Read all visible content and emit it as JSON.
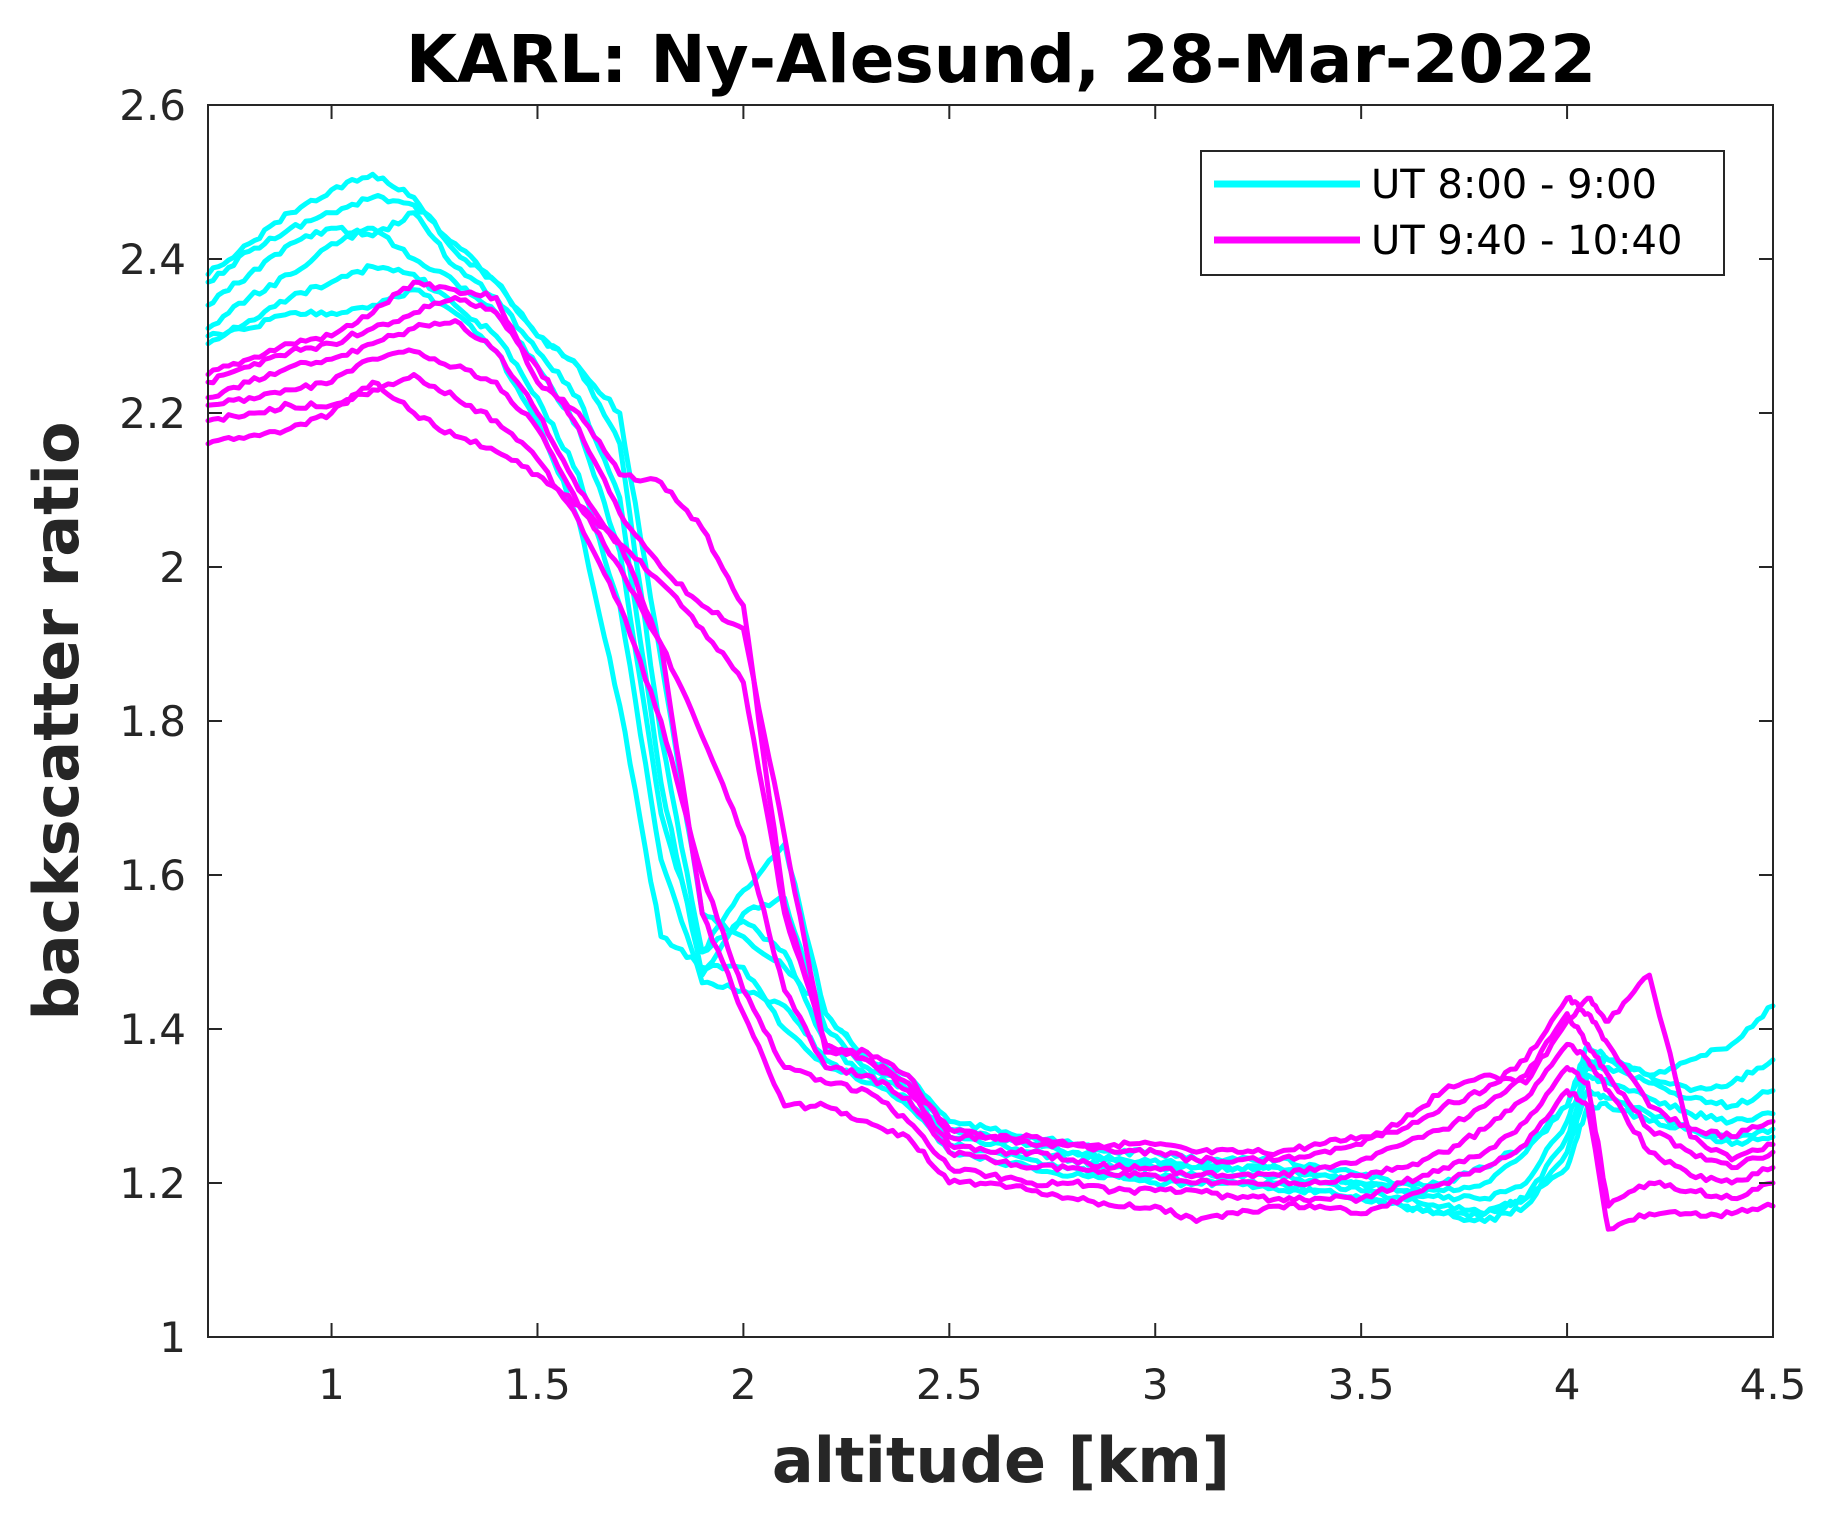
{
  "chart_data": {
    "type": "line",
    "title": "KARL: Ny-Alesund, 28-Mar-2022",
    "xlabel": "altitude [km]",
    "ylabel": "backscatter ratio",
    "xlim": [
      0.7,
      4.5
    ],
    "ylim": [
      1.0,
      2.6
    ],
    "x_ticks": [
      1,
      1.5,
      2,
      2.5,
      3,
      3.5,
      4,
      4.5
    ],
    "x_tick_labels": [
      "1",
      "1.5",
      "2",
      "2.5",
      "3",
      "3.5",
      "4",
      "4.5"
    ],
    "y_ticks": [
      1,
      1.2,
      1.4,
      1.6,
      1.8,
      2,
      2.2,
      2.4,
      2.6
    ],
    "y_tick_labels": [
      "1",
      "1.2",
      "1.4",
      "1.6",
      "1.8",
      "2",
      "2.2",
      "2.4",
      "2.6"
    ],
    "grid": false,
    "legend": {
      "placement": "top-right",
      "entries": [
        {
          "label": "UT 8:00 - 9:00",
          "color": "#00ffff"
        },
        {
          "label": "UT 9:40 - 10:40",
          "color": "#ff00ff"
        }
      ]
    },
    "x": [
      0.7,
      0.8,
      0.9,
      1.0,
      1.1,
      1.2,
      1.3,
      1.4,
      1.5,
      1.6,
      1.7,
      1.8,
      1.9,
      2.0,
      2.1,
      2.2,
      2.3,
      2.4,
      2.5,
      2.6,
      2.7,
      2.8,
      2.9,
      3.0,
      3.1,
      3.2,
      3.3,
      3.4,
      3.5,
      3.6,
      3.7,
      3.8,
      3.9,
      4.0,
      4.05,
      4.1,
      4.2,
      4.3,
      4.4,
      4.5
    ],
    "series": [
      {
        "group": 0,
        "color": "#00ffff",
        "values": [
          2.38,
          2.42,
          2.46,
          2.49,
          2.51,
          2.48,
          2.41,
          2.37,
          2.3,
          2.26,
          2.2,
          1.88,
          1.55,
          1.52,
          1.48,
          1.42,
          1.36,
          1.34,
          1.28,
          1.27,
          1.26,
          1.25,
          1.24,
          1.24,
          1.23,
          1.23,
          1.23,
          1.22,
          1.21,
          1.2,
          1.2,
          1.22,
          1.25,
          1.3,
          1.38,
          1.36,
          1.34,
          1.36,
          1.38,
          1.43
        ]
      },
      {
        "group": 0,
        "color": "#00ffff",
        "values": [
          2.37,
          2.41,
          2.44,
          2.46,
          2.48,
          2.47,
          2.42,
          2.37,
          2.3,
          2.26,
          2.16,
          1.78,
          1.5,
          1.58,
          1.64,
          1.42,
          1.36,
          1.33,
          1.27,
          1.26,
          1.25,
          1.24,
          1.23,
          1.23,
          1.22,
          1.22,
          1.22,
          1.21,
          1.2,
          1.19,
          1.19,
          1.2,
          1.24,
          1.3,
          1.36,
          1.36,
          1.34,
          1.32,
          1.33,
          1.36
        ]
      },
      {
        "group": 0,
        "color": "#00ffff",
        "values": [
          2.34,
          2.38,
          2.42,
          2.44,
          2.43,
          2.46,
          2.39,
          2.35,
          2.28,
          2.22,
          2.09,
          1.72,
          1.47,
          1.55,
          1.57,
          1.4,
          1.35,
          1.33,
          1.27,
          1.26,
          1.25,
          1.24,
          1.23,
          1.22,
          1.22,
          1.22,
          1.22,
          1.21,
          1.2,
          1.19,
          1.18,
          1.18,
          1.2,
          1.28,
          1.35,
          1.35,
          1.33,
          1.31,
          1.3,
          1.32
        ]
      },
      {
        "group": 0,
        "color": "#00ffff",
        "values": [
          2.31,
          2.35,
          2.38,
          2.42,
          2.44,
          2.4,
          2.37,
          2.33,
          2.26,
          2.18,
          2.02,
          1.68,
          1.5,
          1.54,
          1.5,
          1.38,
          1.34,
          1.32,
          1.26,
          1.25,
          1.24,
          1.23,
          1.22,
          1.22,
          1.21,
          1.21,
          1.21,
          1.2,
          1.19,
          1.18,
          1.17,
          1.16,
          1.18,
          1.26,
          1.34,
          1.33,
          1.31,
          1.29,
          1.28,
          1.29
        ]
      },
      {
        "group": 0,
        "color": "#00ffff",
        "values": [
          2.29,
          2.32,
          2.35,
          2.37,
          2.39,
          2.38,
          2.34,
          2.3,
          2.22,
          2.12,
          1.95,
          1.62,
          1.46,
          1.45,
          1.43,
          1.36,
          1.33,
          1.31,
          1.25,
          1.24,
          1.23,
          1.22,
          1.21,
          1.21,
          1.2,
          1.2,
          1.2,
          1.19,
          1.18,
          1.17,
          1.16,
          1.15,
          1.17,
          1.24,
          1.32,
          1.31,
          1.29,
          1.27,
          1.26,
          1.27
        ]
      },
      {
        "group": 0,
        "color": "#00ffff",
        "values": [
          2.3,
          2.31,
          2.33,
          2.33,
          2.34,
          2.36,
          2.33,
          2.28,
          2.19,
          2.06,
          1.82,
          1.52,
          1.48,
          1.48,
          1.4,
          1.35,
          1.34,
          1.3,
          1.24,
          1.23,
          1.22,
          1.21,
          1.21,
          1.2,
          1.2,
          1.2,
          1.19,
          1.19,
          1.18,
          1.17,
          1.16,
          1.16,
          1.18,
          1.22,
          1.3,
          1.3,
          1.28,
          1.27,
          1.25,
          1.26
        ]
      },
      {
        "group": 1,
        "color": "#ff00ff",
        "values": [
          2.25,
          2.27,
          2.29,
          2.3,
          2.33,
          2.37,
          2.36,
          2.35,
          2.24,
          2.2,
          2.12,
          2.11,
          2.05,
          1.95,
          1.56,
          1.38,
          1.36,
          1.33,
          1.27,
          1.26,
          1.26,
          1.25,
          1.25,
          1.25,
          1.24,
          1.24,
          1.24,
          1.25,
          1.26,
          1.27,
          1.3,
          1.32,
          1.36,
          1.44,
          1.42,
          1.38,
          1.3,
          1.27,
          1.26,
          1.28
        ]
      },
      {
        "group": 1,
        "color": "#ff00ff",
        "values": [
          2.24,
          2.26,
          2.28,
          2.29,
          2.31,
          2.33,
          2.35,
          2.33,
          2.26,
          2.18,
          2.07,
          2.0,
          1.95,
          1.92,
          1.65,
          1.37,
          1.37,
          1.34,
          1.26,
          1.26,
          1.25,
          1.25,
          1.24,
          1.24,
          1.23,
          1.23,
          1.23,
          1.24,
          1.25,
          1.28,
          1.32,
          1.34,
          1.33,
          1.41,
          1.44,
          1.41,
          1.47,
          1.26,
          1.23,
          1.25
        ]
      },
      {
        "group": 1,
        "color": "#ff00ff",
        "values": [
          2.22,
          2.24,
          2.26,
          2.27,
          2.29,
          2.31,
          2.32,
          2.28,
          2.2,
          2.1,
          2.03,
          1.98,
          1.92,
          1.85,
          1.55,
          1.38,
          1.36,
          1.32,
          1.25,
          1.24,
          1.24,
          1.23,
          1.22,
          1.22,
          1.21,
          1.21,
          1.21,
          1.22,
          1.23,
          1.25,
          1.27,
          1.3,
          1.34,
          1.42,
          1.38,
          1.34,
          1.27,
          1.24,
          1.22,
          1.24
        ]
      },
      {
        "group": 1,
        "color": "#ff00ff",
        "values": [
          2.21,
          2.22,
          2.23,
          2.24,
          2.27,
          2.28,
          2.26,
          2.24,
          2.18,
          2.08,
          2.0,
          1.9,
          1.78,
          1.65,
          1.45,
          1.35,
          1.34,
          1.31,
          1.24,
          1.23,
          1.22,
          1.22,
          1.21,
          1.21,
          1.2,
          1.2,
          1.2,
          1.2,
          1.21,
          1.22,
          1.24,
          1.27,
          1.31,
          1.38,
          1.36,
          1.32,
          1.24,
          1.21,
          1.2,
          1.22
        ]
      },
      {
        "group": 1,
        "color": "#ff00ff",
        "values": [
          2.19,
          2.2,
          2.21,
          2.21,
          2.23,
          2.25,
          2.22,
          2.19,
          2.14,
          2.06,
          1.95,
          1.8,
          1.6,
          1.45,
          1.35,
          1.33,
          1.32,
          1.28,
          1.22,
          1.21,
          1.2,
          1.2,
          1.19,
          1.19,
          1.19,
          1.18,
          1.18,
          1.18,
          1.18,
          1.2,
          1.22,
          1.24,
          1.28,
          1.35,
          1.33,
          1.17,
          1.2,
          1.19,
          1.18,
          1.2
        ]
      },
      {
        "group": 1,
        "color": "#ff00ff",
        "values": [
          2.16,
          2.17,
          2.18,
          2.2,
          2.24,
          2.2,
          2.17,
          2.15,
          2.12,
          2.08,
          2.03,
          1.9,
          1.55,
          1.42,
          1.3,
          1.3,
          1.28,
          1.26,
          1.2,
          1.2,
          1.19,
          1.18,
          1.17,
          1.17,
          1.15,
          1.16,
          1.17,
          1.17,
          1.16,
          1.18,
          1.2,
          1.22,
          1.25,
          1.32,
          1.3,
          1.14,
          1.16,
          1.16,
          1.16,
          1.17
        ]
      }
    ]
  }
}
